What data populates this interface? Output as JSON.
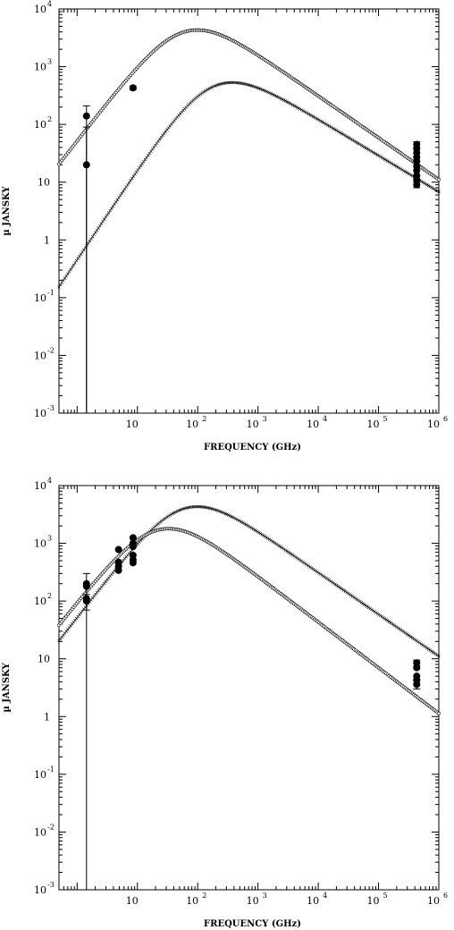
{
  "chart_data": [
    {
      "type": "scatter",
      "title": "",
      "xlabel": "FREQUENCY (GHz)",
      "ylabel": "µ JANSKY",
      "x_log": true,
      "y_log": true,
      "xlim": [
        0.5,
        1000000
      ],
      "ylim": [
        0.001,
        10000
      ],
      "x_tick_labels": [
        {
          "base": "10",
          "exp": "",
          "value": 10
        },
        {
          "base": "10",
          "exp": "2",
          "value": 100
        },
        {
          "base": "10",
          "exp": "3",
          "value": 1000
        },
        {
          "base": "10",
          "exp": "4",
          "value": 10000
        },
        {
          "base": "10",
          "exp": "5",
          "value": 100000
        },
        {
          "base": "10",
          "exp": "6",
          "value": 1000000
        }
      ],
      "y_tick_labels": [
        {
          "base": "10",
          "exp": "-3",
          "value": 0.001
        },
        {
          "base": "10",
          "exp": "-2",
          "value": 0.01
        },
        {
          "base": "10",
          "exp": "-1",
          "value": 0.1
        },
        {
          "base": "1",
          "exp": "",
          "value": 1
        },
        {
          "base": "10",
          "exp": "",
          "value": 10
        },
        {
          "base": "10",
          "exp": "2",
          "value": 100
        },
        {
          "base": "10",
          "exp": "3",
          "value": 1000
        },
        {
          "base": "10",
          "exp": "4",
          "value": 10000
        }
      ],
      "series": [
        {
          "marker": "circle",
          "peak_freq": 60,
          "peak_flux": 4000,
          "low_freq": 0.5,
          "low_flux": 6.5,
          "high_freq": 1000000,
          "high_flux": 3.5
        },
        {
          "marker": "cross",
          "peak_freq": 180,
          "peak_flux": 450,
          "low_freq": 0.5,
          "low_flux": 0.045,
          "high_freq": 1000000,
          "high_flux": 2.0
        }
      ],
      "observations": [
        {
          "x": 1.43,
          "y": 140,
          "err_low": 0.001,
          "err_high": 210
        },
        {
          "x": 1.43,
          "y": 20,
          "err_low": 0.001,
          "err_high": 90
        },
        {
          "x": 8.46,
          "y": 430,
          "err_low": 400,
          "err_high": 460
        },
        {
          "x": 430000,
          "y": 45,
          "err_low": 40,
          "err_high": 50
        },
        {
          "x": 430000,
          "y": 38
        },
        {
          "x": 430000,
          "y": 32
        },
        {
          "x": 430000,
          "y": 27
        },
        {
          "x": 430000,
          "y": 23
        },
        {
          "x": 430000,
          "y": 19
        },
        {
          "x": 430000,
          "y": 16
        },
        {
          "x": 430000,
          "y": 13
        },
        {
          "x": 430000,
          "y": 11
        },
        {
          "x": 430000,
          "y": 9,
          "err_low": 8,
          "err_high": 10
        }
      ]
    },
    {
      "type": "scatter",
      "title": "",
      "xlabel": "FREQUENCY (GHz)",
      "ylabel": "µ JANSKY",
      "x_log": true,
      "y_log": true,
      "xlim": [
        0.5,
        1000000
      ],
      "ylim": [
        0.001,
        10000
      ],
      "x_tick_labels": [
        {
          "base": "10",
          "exp": "",
          "value": 10
        },
        {
          "base": "10",
          "exp": "2",
          "value": 100
        },
        {
          "base": "10",
          "exp": "3",
          "value": 1000
        },
        {
          "base": "10",
          "exp": "4",
          "value": 10000
        },
        {
          "base": "10",
          "exp": "5",
          "value": 100000
        },
        {
          "base": "10",
          "exp": "6",
          "value": 1000000
        }
      ],
      "y_tick_labels": [
        {
          "base": "10",
          "exp": "-3",
          "value": 0.001
        },
        {
          "base": "10",
          "exp": "-2",
          "value": 0.01
        },
        {
          "base": "10",
          "exp": "-1",
          "value": 0.1
        },
        {
          "base": "1",
          "exp": "",
          "value": 1
        },
        {
          "base": "10",
          "exp": "",
          "value": 10
        },
        {
          "base": "10",
          "exp": "2",
          "value": 100
        },
        {
          "base": "10",
          "exp": "3",
          "value": 1000
        },
        {
          "base": "10",
          "exp": "4",
          "value": 10000
        }
      ],
      "series": [
        {
          "marker": "cross",
          "peak_freq": 60,
          "peak_flux": 4000,
          "low_freq": 0.5,
          "low_flux": 6.5,
          "high_freq": 1000000,
          "high_flux": 3.5
        },
        {
          "marker": "circle",
          "peak_freq": 22,
          "peak_flux": 1700,
          "low_freq": 0.5,
          "low_flux": 12,
          "high_freq": 1000000,
          "high_flux": 0.35
        }
      ],
      "observations": [
        {
          "x": 1.43,
          "y": 200,
          "err_low": 0.001,
          "err_high": 300
        },
        {
          "x": 1.43,
          "y": 180
        },
        {
          "x": 1.43,
          "y": 110
        },
        {
          "x": 1.43,
          "y": 100,
          "err_low": 70,
          "err_high": 130
        },
        {
          "x": 4.86,
          "y": 780
        },
        {
          "x": 4.86,
          "y": 470
        },
        {
          "x": 4.86,
          "y": 400
        },
        {
          "x": 4.86,
          "y": 340
        },
        {
          "x": 8.46,
          "y": 1250
        },
        {
          "x": 8.46,
          "y": 1000
        },
        {
          "x": 8.46,
          "y": 880
        },
        {
          "x": 8.46,
          "y": 620
        },
        {
          "x": 8.46,
          "y": 520
        },
        {
          "x": 8.46,
          "y": 460
        },
        {
          "x": 430000,
          "y": 8.5,
          "err_low": 7.5,
          "err_high": 9.5
        },
        {
          "x": 430000,
          "y": 7
        },
        {
          "x": 430000,
          "y": 5
        },
        {
          "x": 430000,
          "y": 4.3
        },
        {
          "x": 430000,
          "y": 3.6,
          "err_low": 3,
          "err_high": 4.2
        }
      ]
    }
  ]
}
